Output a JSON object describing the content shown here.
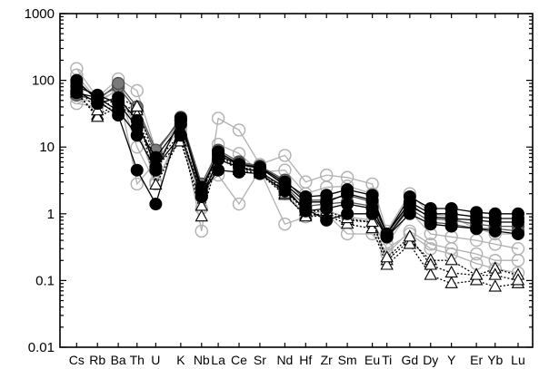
{
  "chart_data": {
    "type": "line",
    "title": "",
    "xlabel": "",
    "ylabel": "",
    "y_scale": "log",
    "ylim": [
      0.01,
      1000
    ],
    "yticks": [
      "0.01",
      "0.1",
      "1",
      "10",
      "100",
      "1000"
    ],
    "grid": false,
    "legend": "none",
    "categories": [
      "Cs",
      "Rb",
      "Ba",
      "Th",
      "U",
      "K",
      "Nb",
      "La",
      "Ce",
      "Sr",
      "Nd",
      "Hf",
      "Zr",
      "Sm",
      "Eu",
      "Ti",
      "Gd",
      "Dy",
      "Y",
      "Er",
      "Yb",
      "Lu"
    ],
    "x_positions": [
      1,
      2,
      3,
      3.9,
      4.8,
      6,
      7,
      7.8,
      8.8,
      9.8,
      11,
      12,
      13,
      14,
      15.2,
      15.9,
      17,
      18,
      19,
      20.2,
      21.1,
      22.2
    ],
    "colors": {
      "black": "#000000",
      "dark_gray": "#555555",
      "gray": "#909090",
      "light_gray": "#b0b0b0"
    },
    "series": [
      {
        "marker": "filled-circle",
        "color": "black",
        "line": "solid",
        "values": [
          65,
          55,
          35,
          15,
          4.5,
          27,
          2.2,
          8.5,
          5.5,
          5,
          3,
          1.8,
          1.9,
          2.3,
          1.9,
          0.5,
          1.8,
          1.2,
          1.2,
          1.05,
          1.0,
          1.0
        ]
      },
      {
        "marker": "filled-circle",
        "color": "black",
        "line": "solid",
        "values": [
          100,
          50,
          30,
          4.5,
          1.4,
          25,
          2.0,
          4.5,
          4.2,
          4,
          2.2,
          1.2,
          0.8,
          1.0,
          1.0,
          0.45,
          1.3,
          0.9,
          0.85,
          0.8,
          0.75,
          0.75
        ]
      },
      {
        "marker": "filled-circle",
        "color": "black",
        "line": "solid",
        "values": [
          80,
          60,
          45,
          20,
          7,
          22,
          2.5,
          7.5,
          5.5,
          4.8,
          2.8,
          1.5,
          1.5,
          2.0,
          1.6,
          0.5,
          1.5,
          1.0,
          1.0,
          0.9,
          0.85,
          0.85
        ]
      },
      {
        "marker": "filled-circle",
        "color": "black",
        "line": "solid",
        "values": [
          70,
          45,
          55,
          25,
          5,
          15,
          1.8,
          6.5,
          5,
          4.2,
          2.5,
          1.1,
          1.2,
          1.4,
          1.2,
          0.45,
          1.0,
          0.7,
          0.65,
          0.6,
          0.55,
          0.5
        ]
      },
      {
        "marker": "gray-circle",
        "color": "dark_gray",
        "line": "solid",
        "values": [
          90,
          55,
          80,
          35,
          8,
          28,
          2.8,
          9,
          6,
          5.2,
          3.2,
          1.6,
          1.6,
          1.9,
          1.5,
          0.5,
          1.4,
          0.85,
          0.8,
          0.7,
          0.65,
          0.65
        ]
      },
      {
        "marker": "gray-circle",
        "color": "dark_gray",
        "line": "solid",
        "values": [
          60,
          50,
          90,
          40,
          9,
          25,
          2.5,
          8,
          5.8,
          5,
          2.6,
          1.3,
          1.4,
          1.5,
          1.3,
          0.45,
          1.2,
          0.75,
          0.7,
          0.6,
          0.6,
          0.55
        ]
      },
      {
        "marker": "open-circle",
        "color": "light_gray",
        "line": "solid",
        "values": [
          150,
          55,
          105,
          70,
          9,
          22,
          0.55,
          27,
          18,
          5.5,
          7.5,
          3,
          3.8,
          3.5,
          2.8,
          0.55,
          2.0,
          1.0,
          0.9,
          0.6,
          0.5,
          0.5
        ]
      },
      {
        "marker": "open-circle",
        "color": "light_gray",
        "line": "solid",
        "values": [
          45,
          40,
          60,
          20,
          3,
          15,
          2.3,
          3.8,
          1.4,
          4.5,
          0.7,
          0.9,
          1.0,
          0.5,
          0.5,
          0.25,
          0.55,
          0.35,
          0.3,
          0.25,
          0.2,
          0.2
        ]
      },
      {
        "marker": "open-circle",
        "color": "light_gray",
        "line": "solid",
        "values": [
          120,
          50,
          70,
          10,
          2.8,
          18,
          1.8,
          11,
          8,
          4.2,
          4.5,
          2.0,
          2.5,
          2.6,
          2.0,
          0.35,
          1.1,
          0.5,
          0.45,
          0.4,
          0.35,
          0.3
        ]
      },
      {
        "marker": "open-circle",
        "color": "light_gray",
        "line": "solid",
        "values": [
          55,
          45,
          75,
          2.8,
          6,
          20,
          1.2,
          7,
          6,
          4,
          2.0,
          1.0,
          1.1,
          0.9,
          0.8,
          0.3,
          0.5,
          0.3,
          0.25,
          0.18,
          0.15,
          0.13
        ]
      },
      {
        "marker": "open-triangle",
        "color": "black",
        "line": "dotted",
        "values": [
          65,
          30,
          45,
          35,
          2.7,
          14,
          0.9,
          7,
          4.5,
          4,
          1.9,
          0.95,
          1.0,
          0.8,
          0.75,
          0.2,
          0.4,
          0.2,
          0.2,
          0.12,
          0.15,
          0.12
        ]
      },
      {
        "marker": "open-triangle",
        "color": "black",
        "line": "dotted",
        "values": [
          65,
          28,
          40,
          30,
          5,
          12,
          1.3,
          7.5,
          4.8,
          4.2,
          2.0,
          0.9,
          0.95,
          0.7,
          0.6,
          0.17,
          0.35,
          0.12,
          0.09,
          0.1,
          0.08,
          0.09
        ]
      },
      {
        "marker": "open-triangle",
        "color": "black",
        "line": "dotted",
        "values": [
          80,
          35,
          55,
          40,
          6,
          16,
          2.0,
          8,
          5,
          4.5,
          2.2,
          1.1,
          1.1,
          0.85,
          0.75,
          0.22,
          0.45,
          0.17,
          0.13,
          0.12,
          0.12,
          0.1
        ]
      }
    ]
  }
}
